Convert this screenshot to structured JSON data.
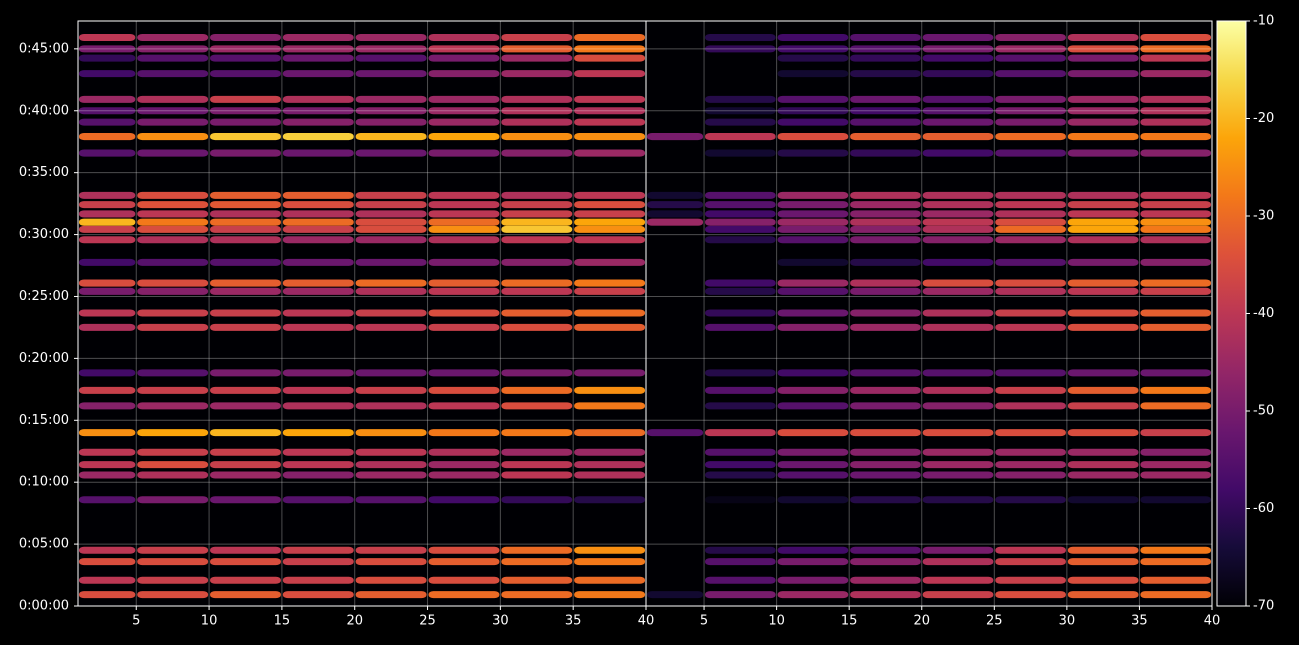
{
  "chart_data": {
    "type": "heatmap",
    "colormap": "inferno",
    "grid": true,
    "xlim": [
      1,
      40
    ],
    "xticks": [
      5,
      10,
      15,
      20,
      25,
      30,
      35,
      40
    ],
    "ylim": [
      0,
      2835
    ],
    "yticks": [
      {
        "value": 0,
        "label": "0:00:00"
      },
      {
        "value": 300,
        "label": "0:05:00"
      },
      {
        "value": 600,
        "label": "0:10:00"
      },
      {
        "value": 900,
        "label": "0:15:00"
      },
      {
        "value": 1200,
        "label": "0:20:00"
      },
      {
        "value": 1500,
        "label": "0:25:00"
      },
      {
        "value": 1800,
        "label": "0:30:00"
      },
      {
        "value": 2100,
        "label": "0:35:00"
      },
      {
        "value": 2400,
        "label": "0:40:00"
      },
      {
        "value": 2700,
        "label": "0:45:00"
      }
    ],
    "zlim": [
      -70,
      -10
    ],
    "zticks": [
      -10,
      -20,
      -30,
      -40,
      -50,
      -60,
      -70
    ],
    "x_bins": [
      1,
      5,
      10,
      15,
      20,
      25,
      30,
      35,
      40
    ],
    "rows": [
      2755,
      2700,
      2655,
      2580,
      2455,
      2400,
      2345,
      2275,
      2195,
      1990,
      1945,
      1900,
      1860,
      1825,
      1775,
      1665,
      1565,
      1525,
      1420,
      1350,
      1130,
      1045,
      970,
      840,
      745,
      685,
      635,
      515,
      270,
      215,
      125,
      55
    ],
    "panels": [
      {
        "values": [
          [
            -40,
            -45,
            -48,
            -45,
            -45,
            -42,
            -38,
            -30
          ],
          [
            -50,
            -48,
            -45,
            -45,
            -45,
            -40,
            -32,
            -28
          ],
          [
            -60,
            -55,
            -55,
            -52,
            -55,
            -50,
            -45,
            -35
          ],
          [
            -58,
            -55,
            -55,
            -52,
            -52,
            -48,
            -45,
            -40
          ],
          [
            -45,
            -42,
            -38,
            -42,
            -45,
            -45,
            -42,
            -40
          ],
          [
            -55,
            -52,
            -50,
            -50,
            -48,
            -45,
            -42,
            -42
          ],
          [
            -55,
            -50,
            -50,
            -48,
            -48,
            -45,
            -42,
            -40
          ],
          [
            -30,
            -25,
            -18,
            -17,
            -20,
            -22,
            -25,
            -25
          ],
          [
            -55,
            -52,
            -50,
            -52,
            -52,
            -50,
            -48,
            -45
          ],
          [
            -42,
            -35,
            -32,
            -32,
            -38,
            -40,
            -42,
            -40
          ],
          [
            -38,
            -34,
            -33,
            -35,
            -38,
            -40,
            -38,
            -35
          ],
          [
            -42,
            -40,
            -42,
            -42,
            -42,
            -40,
            -38,
            -38
          ],
          [
            -20,
            -28,
            -30,
            -30,
            -35,
            -30,
            -20,
            -22
          ],
          [
            -38,
            -35,
            -38,
            -38,
            -35,
            -25,
            -18,
            -25
          ],
          [
            -40,
            -42,
            -42,
            -45,
            -45,
            -42,
            -40,
            -40
          ],
          [
            -58,
            -55,
            -55,
            -52,
            -52,
            -50,
            -48,
            -45
          ],
          [
            -35,
            -35,
            -32,
            -32,
            -30,
            -32,
            -30,
            -28
          ],
          [
            -50,
            -48,
            -45,
            -45,
            -42,
            -40,
            -40,
            -38
          ],
          [
            -40,
            -38,
            -38,
            -40,
            -38,
            -35,
            -32,
            -30
          ],
          [
            -42,
            -38,
            -38,
            -40,
            -40,
            -38,
            -35,
            -32
          ],
          [
            -58,
            -55,
            -50,
            -50,
            -52,
            -52,
            -50,
            -50
          ],
          [
            -38,
            -38,
            -38,
            -40,
            -38,
            -35,
            -30,
            -25
          ],
          [
            -48,
            -45,
            -45,
            -42,
            -42,
            -40,
            -35,
            -28
          ],
          [
            -25,
            -22,
            -20,
            -22,
            -25,
            -28,
            -28,
            -30
          ],
          [
            -40,
            -38,
            -38,
            -40,
            -40,
            -42,
            -45,
            -45
          ],
          [
            -40,
            -35,
            -38,
            -40,
            -42,
            -45,
            -40,
            -42
          ],
          [
            -45,
            -42,
            -45,
            -48,
            -45,
            -45,
            -40,
            -42
          ],
          [
            -55,
            -50,
            -52,
            -55,
            -55,
            -58,
            -60,
            -62
          ],
          [
            -40,
            -38,
            -40,
            -38,
            -38,
            -35,
            -30,
            -25
          ],
          [
            -35,
            -35,
            -35,
            -38,
            -35,
            -32,
            -30,
            -28
          ],
          [
            -40,
            -38,
            -38,
            -38,
            -35,
            -35,
            -32,
            -30
          ],
          [
            -35,
            -35,
            -32,
            -35,
            -32,
            -30,
            -30,
            -28
          ]
        ]
      },
      {
        "values": [
          [
            -70,
            -62,
            -58,
            -55,
            -52,
            -48,
            -42,
            -35
          ],
          [
            -70,
            -60,
            -58,
            -55,
            -50,
            -45,
            -35,
            -30
          ],
          [
            -70,
            -70,
            -62,
            -60,
            -58,
            -55,
            -50,
            -40
          ],
          [
            -70,
            -70,
            -65,
            -62,
            -60,
            -55,
            -50,
            -45
          ],
          [
            -70,
            -62,
            -55,
            -52,
            -55,
            -50,
            -45,
            -42
          ],
          [
            -70,
            -65,
            -60,
            -58,
            -55,
            -50,
            -45,
            -42
          ],
          [
            -70,
            -62,
            -58,
            -55,
            -52,
            -50,
            -45,
            -42
          ],
          [
            -50,
            -40,
            -35,
            -32,
            -32,
            -30,
            -28,
            -28
          ],
          [
            -70,
            -65,
            -62,
            -60,
            -58,
            -55,
            -50,
            -48
          ],
          [
            -65,
            -55,
            -45,
            -42,
            -42,
            -42,
            -42,
            -40
          ],
          [
            -62,
            -55,
            -50,
            -45,
            -42,
            -40,
            -38,
            -38
          ],
          [
            -65,
            -58,
            -52,
            -48,
            -45,
            -42,
            -40,
            -40
          ],
          [
            -45,
            -48,
            -45,
            -42,
            -40,
            -35,
            -22,
            -25
          ],
          [
            -70,
            -58,
            -50,
            -48,
            -42,
            -30,
            -22,
            -28
          ],
          [
            -70,
            -62,
            -55,
            -50,
            -48,
            -45,
            -42,
            -42
          ],
          [
            -70,
            -70,
            -65,
            -62,
            -58,
            -55,
            -50,
            -48
          ],
          [
            -70,
            -58,
            -45,
            -42,
            -35,
            -35,
            -32,
            -30
          ],
          [
            -70,
            -62,
            -55,
            -50,
            -45,
            -42,
            -40,
            -38
          ],
          [
            -70,
            -60,
            -52,
            -48,
            -42,
            -38,
            -35,
            -32
          ],
          [
            -70,
            -55,
            -48,
            -45,
            -42,
            -40,
            -35,
            -32
          ],
          [
            -70,
            -62,
            -58,
            -55,
            -55,
            -55,
            -52,
            -52
          ],
          [
            -70,
            -55,
            -48,
            -45,
            -42,
            -38,
            -32,
            -28
          ],
          [
            -70,
            -62,
            -55,
            -50,
            -48,
            -42,
            -38,
            -30
          ],
          [
            -55,
            -40,
            -35,
            -35,
            -35,
            -35,
            -35,
            -38
          ],
          [
            -70,
            -55,
            -50,
            -48,
            -45,
            -45,
            -45,
            -48
          ],
          [
            -70,
            -58,
            -52,
            -48,
            -45,
            -45,
            -42,
            -45
          ],
          [
            -70,
            -62,
            -55,
            -52,
            -50,
            -48,
            -45,
            -45
          ],
          [
            -70,
            -68,
            -65,
            -62,
            -62,
            -62,
            -65,
            -65
          ],
          [
            -70,
            -62,
            -58,
            -55,
            -50,
            -40,
            -32,
            -28
          ],
          [
            -70,
            -55,
            -50,
            -48,
            -42,
            -38,
            -32,
            -30
          ],
          [
            -70,
            -55,
            -50,
            -45,
            -40,
            -38,
            -35,
            -32
          ],
          [
            -65,
            -50,
            -45,
            -42,
            -38,
            -35,
            -32,
            -30
          ]
        ]
      }
    ]
  }
}
